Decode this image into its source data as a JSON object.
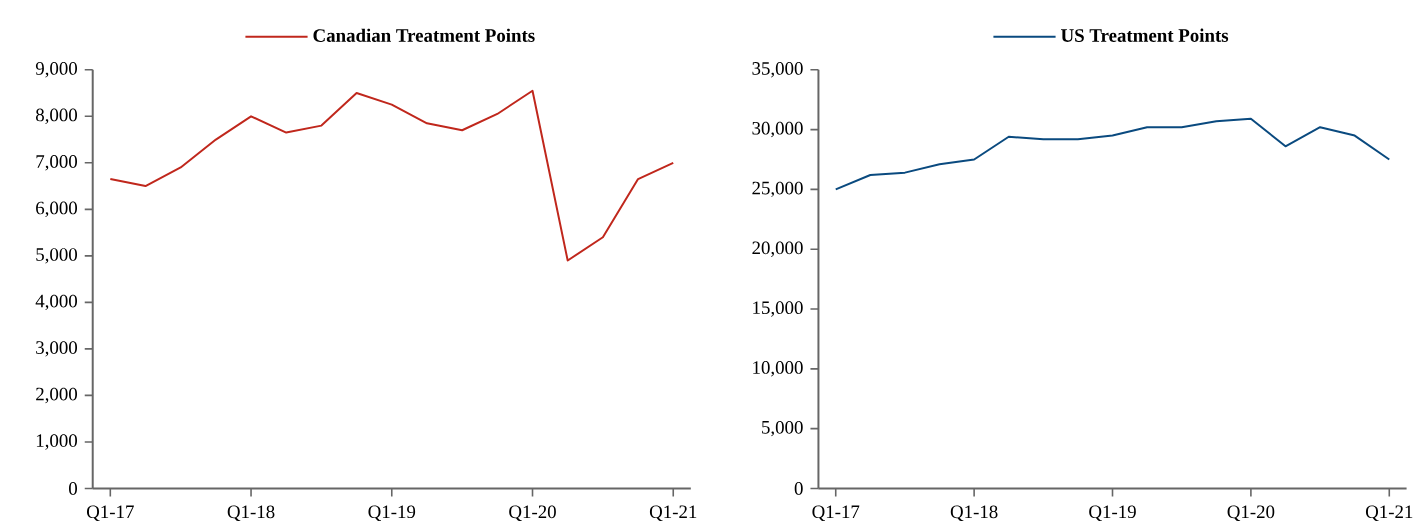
{
  "chart_data": [
    {
      "type": "line",
      "categories": [
        "Q1-17",
        null,
        null,
        null,
        "Q1-18",
        null,
        null,
        null,
        "Q1-19",
        null,
        null,
        null,
        "Q1-20",
        null,
        null,
        null,
        "Q1-21"
      ],
      "series": [
        {
          "name": "Canadian Treatment Points",
          "color": "#c0271c",
          "values": [
            6650,
            6500,
            6900,
            7500,
            8000,
            7650,
            7800,
            8500,
            8250,
            7850,
            7700,
            8050,
            8550,
            4900,
            5400,
            6650,
            7000
          ]
        }
      ],
      "ylim": [
        0,
        9000
      ],
      "yticks": [
        0,
        {
          "value": 1000,
          "label": "1,000"
        },
        {
          "value": 2000,
          "label": "2,000"
        },
        {
          "value": 3000,
          "label": "3,000"
        },
        {
          "value": 4000,
          "label": "4,000"
        },
        {
          "value": 5000,
          "label": "5,000"
        },
        {
          "value": 6000,
          "label": "6,000"
        },
        {
          "value": 7000,
          "label": "7,000"
        },
        {
          "value": 8000,
          "label": "8,000"
        },
        {
          "value": 9000,
          "label": "9,000"
        }
      ],
      "legend": "top",
      "grid": false,
      "marker": "none"
    },
    {
      "type": "line",
      "categories": [
        "Q1-17",
        null,
        null,
        null,
        "Q1-18",
        null,
        null,
        null,
        "Q1-19",
        null,
        null,
        null,
        "Q1-20",
        null,
        null,
        null,
        "Q1-21"
      ],
      "series": [
        {
          "name": "US Treatment Points",
          "color": "#0a4a7f",
          "values": [
            25000,
            26200,
            26400,
            27100,
            27500,
            29400,
            29200,
            29200,
            29500,
            30200,
            30200,
            30700,
            30900,
            28600,
            30200,
            29500,
            27500
          ]
        }
      ],
      "ylim": [
        0,
        35000
      ],
      "yticks": [
        0,
        {
          "value": 5000,
          "label": "5,000"
        },
        {
          "value": 10000,
          "label": "10,000"
        },
        {
          "value": 15000,
          "label": "15,000"
        },
        {
          "value": 20000,
          "label": "20,000"
        },
        {
          "value": 25000,
          "label": "25,000"
        },
        {
          "value": 30000,
          "label": "30,000"
        },
        {
          "value": 35000,
          "label": "35,000"
        }
      ],
      "legend": "top",
      "grid": false,
      "marker": "none"
    }
  ]
}
